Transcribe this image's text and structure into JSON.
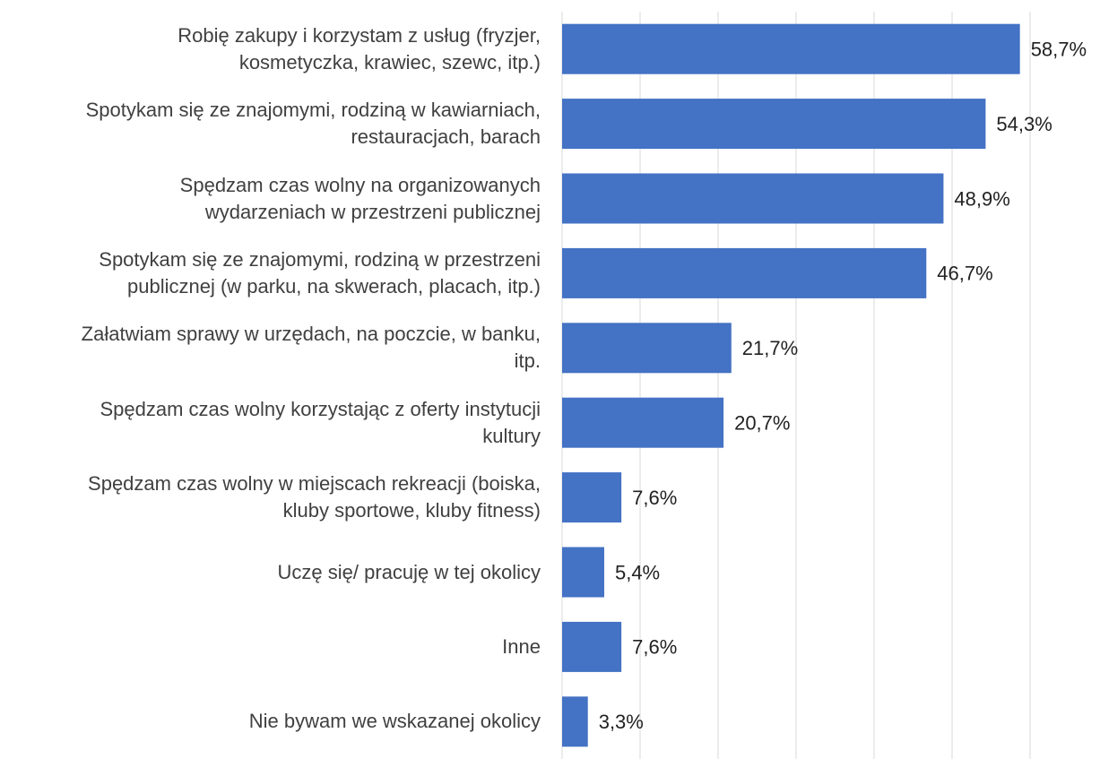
{
  "chart_data": {
    "type": "barh",
    "categories": [
      "Robię zakupy i korzystam z usług (fryzjer,\nkosmetyczka, krawiec, szewc, itp.)",
      "Spotykam się ze znajomymi, rodziną w kawiarniach,\nrestauracjach, barach",
      "Spędzam czas wolny na organizowanych\nwydarzeniach w przestrzeni publicznej",
      "Spotykam się ze znajomymi, rodziną w przestrzeni\npublicznej (w parku, na skwerach, placach, itp.)",
      "Załatwiam sprawy w urzędach, na poczcie, w banku,\nitp.",
      "Spędzam czas wolny korzystając z oferty instytucji\nkultury",
      "Spędzam czas wolny w miejscach rekreacji (boiska,\nkluby sportowe, kluby fitness)",
      "Uczę się/ pracuję w tej okolicy",
      "Inne",
      "Nie bywam we wskazanej okolicy"
    ],
    "values": [
      58.7,
      54.3,
      48.9,
      46.7,
      21.7,
      20.7,
      7.6,
      5.4,
      7.6,
      3.3
    ],
    "value_labels": [
      "58,7%",
      "54,3%",
      "48,9%",
      "46,7%",
      "21,7%",
      "20,7%",
      "7,6%",
      "5,4%",
      "7,6%",
      "3,3%"
    ],
    "color": "#4472c4",
    "xlim": [
      0,
      60
    ],
    "xticks": [
      0,
      10,
      20,
      30,
      40,
      50,
      60
    ],
    "grid": true
  }
}
